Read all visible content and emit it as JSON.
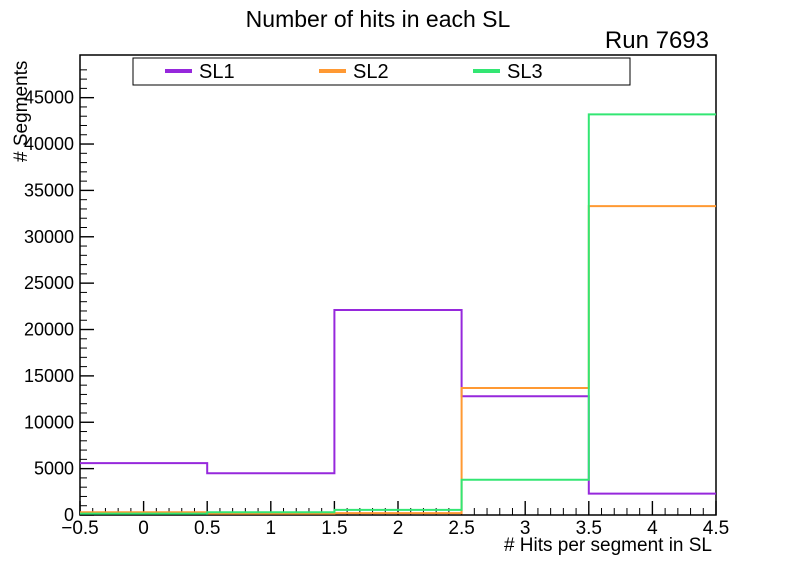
{
  "title": "Number of hits in each SL",
  "run_label": "Run 7693",
  "chart_data": {
    "type": "step-histogram",
    "title": "Number of hits in each SL",
    "annotation": "Run 7693",
    "xlabel": "# Hits per segment in SL",
    "ylabel": "# Segments",
    "xlim": [
      -0.5,
      4.5
    ],
    "ylim": [
      0,
      49600
    ],
    "grid": false,
    "legend_position": "top-inside",
    "bin_edges": [
      -0.5,
      0.5,
      1.5,
      2.5,
      3.5,
      4.5
    ],
    "categories": [
      0,
      1,
      2,
      3,
      4
    ],
    "series": [
      {
        "name": "SL1",
        "color": "#9628dc",
        "values": [
          5600,
          4500,
          22100,
          12800,
          2300
        ]
      },
      {
        "name": "SL2",
        "color": "#ff9933",
        "values": [
          300,
          150,
          200,
          13700,
          33300
        ]
      },
      {
        "name": "SL3",
        "color": "#33e673",
        "values": [
          150,
          300,
          550,
          3800,
          43200
        ]
      }
    ],
    "x_major_ticks": [
      -0.5,
      0,
      0.5,
      1,
      1.5,
      2,
      2.5,
      3,
      3.5,
      4,
      4.5
    ],
    "x_tick_labels": [
      "−0.5",
      "0",
      "0.5",
      "1",
      "1.5",
      "2",
      "2.5",
      "3",
      "3.5",
      "4",
      "4.5"
    ],
    "x_minor_step": 0.1,
    "y_major_step": 5000,
    "y_minor_step": 1000,
    "y_tick_labels": [
      "0",
      "5000",
      "10000",
      "15000",
      "20000",
      "25000",
      "30000",
      "35000",
      "40000",
      "45000"
    ]
  }
}
